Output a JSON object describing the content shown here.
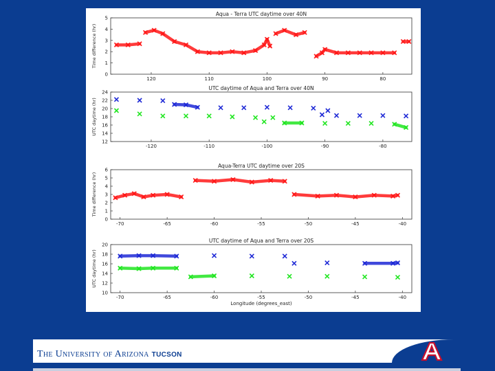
{
  "footer": {
    "university": "The University of Arizona",
    "campus": "TUCSON"
  },
  "colors": {
    "red": "#ff1a1a",
    "blue": "#1f2ad6",
    "green": "#22e622",
    "background": "#0b3d91"
  },
  "chart_data": [
    {
      "type": "scatter",
      "title": "Aqua - Terra UTC daytime over 40N",
      "xlabel": "",
      "ylabel": "Time difference (hr)",
      "xlim": [
        127,
        75
      ],
      "ylim": [
        0,
        5
      ],
      "xticks": [
        120,
        110,
        100,
        90,
        80
      ],
      "yticks": [
        0,
        1,
        2,
        3,
        4,
        5
      ],
      "series": [
        {
          "color": "red",
          "points": [
            [
              126,
              2.6
            ],
            [
              124,
              2.6
            ],
            [
              122,
              2.7
            ],
            [
              121,
              3.7
            ],
            [
              119.5,
              3.9
            ],
            [
              118,
              3.6
            ],
            [
              116,
              2.9
            ],
            [
              114,
              2.6
            ],
            [
              112,
              2.0
            ],
            [
              110,
              1.9
            ],
            [
              108,
              1.9
            ],
            [
              106,
              2.0
            ],
            [
              104,
              1.9
            ],
            [
              102,
              2.1
            ],
            [
              100.5,
              2.6
            ],
            [
              100,
              3.1
            ],
            [
              99.5,
              2.5
            ],
            [
              98.5,
              3.6
            ],
            [
              97,
              3.9
            ],
            [
              95,
              3.5
            ],
            [
              93.5,
              3.7
            ],
            [
              91.5,
              1.6
            ],
            [
              90.5,
              1.9
            ],
            [
              90,
              2.2
            ],
            [
              88,
              1.9
            ],
            [
              86,
              1.9
            ],
            [
              84,
              1.9
            ],
            [
              82,
              1.9
            ],
            [
              80,
              1.9
            ],
            [
              78,
              1.9
            ],
            [
              76.5,
              2.9
            ],
            [
              75.5,
              2.9
            ]
          ]
        }
      ]
    },
    {
      "type": "scatter",
      "title": "UTC daytime of Aqua and Terra over 40N",
      "xlabel": "",
      "ylabel": "UTC daytime (hr)",
      "xlim": [
        -127,
        -75
      ],
      "ylim": [
        12,
        24
      ],
      "xticks": [
        -120,
        -110,
        -100,
        -90,
        -80
      ],
      "yticks": [
        12,
        14,
        16,
        18,
        20,
        22,
        24
      ],
      "series": [
        {
          "color": "blue",
          "points": [
            [
              -126,
              22.2
            ],
            [
              -122,
              22.0
            ],
            [
              -118,
              21.9
            ],
            [
              -116,
              21.0
            ],
            [
              -114,
              20.9
            ],
            [
              -112,
              20.3
            ],
            [
              -108,
              20.2
            ],
            [
              -104,
              20.2
            ],
            [
              -100,
              20.3
            ],
            [
              -96,
              20.2
            ],
            [
              -92,
              20.1
            ],
            [
              -90.5,
              18.5
            ],
            [
              -89.5,
              19.5
            ],
            [
              -88,
              18.3
            ],
            [
              -84,
              18.3
            ],
            [
              -80,
              18.3
            ],
            [
              -76,
              18.2
            ]
          ]
        },
        {
          "color": "green",
          "points": [
            [
              -126,
              19.5
            ],
            [
              -122,
              18.7
            ],
            [
              -118,
              18.2
            ],
            [
              -114,
              18.2
            ],
            [
              -110,
              18.2
            ],
            [
              -106,
              18.0
            ],
            [
              -102,
              17.8
            ],
            [
              -100.5,
              16.8
            ],
            [
              -99,
              17.8
            ],
            [
              -97,
              16.5
            ],
            [
              -94,
              16.5
            ],
            [
              -90,
              16.4
            ],
            [
              -86,
              16.4
            ],
            [
              -82,
              16.4
            ],
            [
              -78,
              16.2
            ],
            [
              -76,
              15.4
            ]
          ]
        }
      ]
    },
    {
      "type": "scatter",
      "title": "Aqua-Terra UTC daytime over 20S",
      "xlabel": "",
      "ylabel": "Time difference (hr)",
      "xlim": [
        -71,
        -39
      ],
      "ylim": [
        0,
        6
      ],
      "xticks": [
        -70,
        -65,
        -60,
        -55,
        -50,
        -45,
        -40
      ],
      "yticks": [
        0,
        1,
        2,
        3,
        4,
        5,
        6
      ],
      "series": [
        {
          "color": "red",
          "points": [
            [
              -70.5,
              2.6
            ],
            [
              -69.5,
              2.9
            ],
            [
              -68.5,
              3.1
            ],
            [
              -67.5,
              2.7
            ],
            [
              -66.5,
              2.9
            ],
            [
              -65,
              3.0
            ],
            [
              -63.5,
              2.7
            ],
            [
              -62,
              4.7
            ],
            [
              -60,
              4.6
            ],
            [
              -58,
              4.8
            ],
            [
              -56,
              4.5
            ],
            [
              -54,
              4.7
            ],
            [
              -52.5,
              4.6
            ],
            [
              -51.5,
              3.0
            ],
            [
              -49,
              2.8
            ],
            [
              -47,
              2.9
            ],
            [
              -45,
              2.7
            ],
            [
              -43,
              2.9
            ],
            [
              -41,
              2.8
            ],
            [
              -40.5,
              2.9
            ]
          ]
        }
      ]
    },
    {
      "type": "scatter",
      "title": "UTC daytime of Aqua and Terra over 20S",
      "xlabel": "Longitude (degrees_east)",
      "ylabel": "UTC daytime (hr)",
      "xlim": [
        -71,
        -39
      ],
      "ylim": [
        10,
        20
      ],
      "xticks": [
        -70,
        -65,
        -60,
        -55,
        -50,
        -45,
        -40
      ],
      "yticks": [
        10,
        12,
        14,
        16,
        18,
        20
      ],
      "series": [
        {
          "color": "blue",
          "points": [
            [
              -70,
              17.6
            ],
            [
              -68,
              17.7
            ],
            [
              -66.5,
              17.7
            ],
            [
              -64,
              17.6
            ],
            [
              -60,
              17.7
            ],
            [
              -56,
              17.6
            ],
            [
              -52.5,
              17.6
            ],
            [
              -51.5,
              16.1
            ],
            [
              -48,
              16.2
            ],
            [
              -44,
              16.1
            ],
            [
              -41,
              16.1
            ],
            [
              -40.5,
              16.2
            ]
          ]
        },
        {
          "color": "green",
          "points": [
            [
              -70,
              15.1
            ],
            [
              -68,
              15.0
            ],
            [
              -66.5,
              15.1
            ],
            [
              -64,
              15.1
            ],
            [
              -62.5,
              13.3
            ],
            [
              -60,
              13.5
            ],
            [
              -56,
              13.5
            ],
            [
              -52,
              13.4
            ],
            [
              -48,
              13.4
            ],
            [
              -44,
              13.3
            ],
            [
              -40.5,
              13.2
            ]
          ]
        }
      ]
    }
  ]
}
